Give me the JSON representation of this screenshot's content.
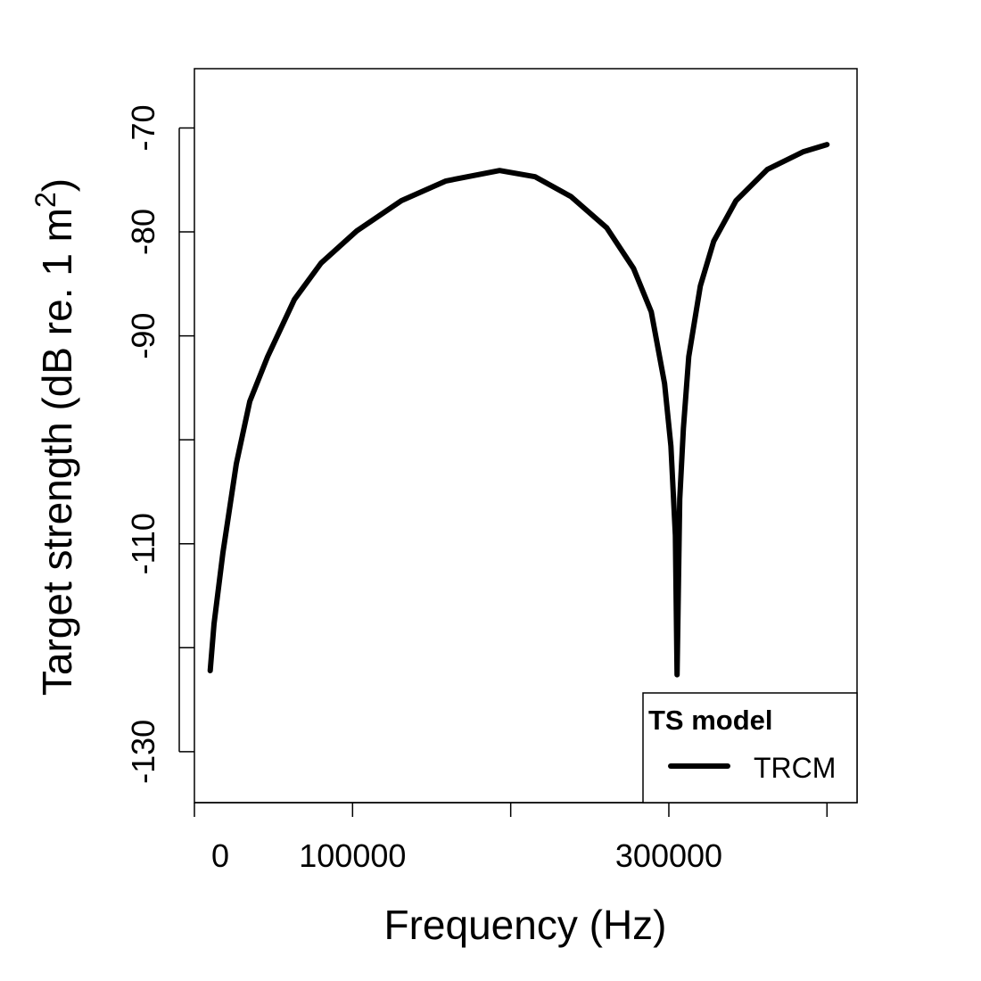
{
  "chart_data": {
    "type": "line",
    "title": "",
    "xlabel": "Frequency (Hz)",
    "ylabel_main": "Target strength (dB re. 1 m",
    "ylabel_sup": "2",
    "ylabel_end": ")",
    "xlim": [
      0,
      419000
    ],
    "ylim": [
      -134.9,
      -64.3
    ],
    "x_ticks": [
      0,
      100000,
      200000,
      300000,
      400000
    ],
    "x_tick_labels": [
      "0",
      "100000",
      "",
      "300000",
      ""
    ],
    "y_ticks": [
      -70,
      -80,
      -90,
      -100,
      -110,
      -120,
      -130
    ],
    "y_tick_labels": [
      "-70",
      "-80",
      "-90",
      "",
      "-110",
      "",
      "-130"
    ],
    "grid": false,
    "legend": {
      "title": "TS model",
      "placement": "bottom-right",
      "entries": [
        "TRCM"
      ]
    },
    "series": [
      {
        "name": "TRCM",
        "color": "#000000",
        "x": [
          10000,
          12400,
          18000,
          26500,
          35000,
          46300,
          63200,
          80100,
          102700,
          130900,
          159100,
          193000,
          215500,
          238100,
          260700,
          277600,
          288900,
          297300,
          301300,
          304100,
          305200,
          306900,
          309200,
          312600,
          319900,
          328400,
          342500,
          362200,
          384800,
          400000
        ],
        "y": [
          -122.2,
          -117.7,
          -110.9,
          -102.3,
          -96.3,
          -92.0,
          -86.5,
          -83.0,
          -79.9,
          -77.0,
          -75.1,
          -74.1,
          -74.7,
          -76.6,
          -79.6,
          -83.5,
          -87.7,
          -94.6,
          -100.6,
          -109.2,
          -122.6,
          -105.7,
          -98.9,
          -92.0,
          -85.2,
          -80.9,
          -77.0,
          -74.0,
          -72.3,
          -71.6
        ]
      }
    ]
  }
}
